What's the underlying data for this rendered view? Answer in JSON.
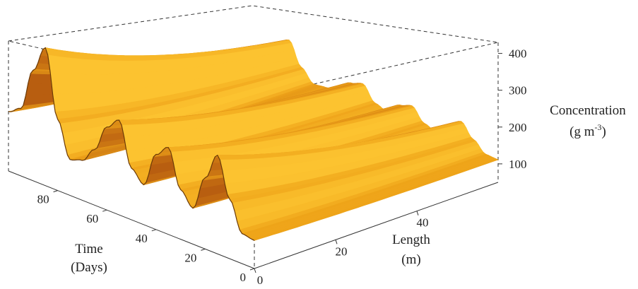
{
  "chart_data": {
    "type": "surface3d",
    "title": "",
    "x_axis": {
      "label_line1": "Length",
      "label_line2": "(m)",
      "ticks": [
        "0",
        "20",
        "40"
      ],
      "range": [
        0,
        60
      ]
    },
    "y_axis": {
      "label_line1": "Time",
      "label_line2": "(Days)",
      "ticks": [
        "0",
        "20",
        "40",
        "60",
        "80"
      ],
      "range": [
        0,
        100
      ]
    },
    "z_axis": {
      "label_line1": "Concentration",
      "label_prefix": "(g m",
      "label_sup": "-3",
      "label_suffix": ")",
      "ticks": [
        "100",
        "200",
        "300",
        "400"
      ],
      "range": [
        50,
        430
      ]
    },
    "ridges_time_days": [
      12,
      33,
      54,
      85
    ],
    "time_profile_at_length_0": {
      "time_days": [
        0,
        5,
        10,
        15,
        20,
        25,
        30,
        35,
        40,
        45,
        50,
        55,
        60,
        65,
        70,
        75,
        80,
        85,
        90,
        95,
        100
      ],
      "concentration": [
        120,
        125,
        200,
        300,
        230,
        140,
        175,
        270,
        240,
        150,
        180,
        290,
        260,
        190,
        150,
        140,
        230,
        400,
        330,
        220,
        200
      ]
    },
    "grid": false,
    "colors": {
      "surface_light": "#fcc330",
      "surface_mid": "#eea319",
      "surface_dark": "#b85e10",
      "box": "#333333"
    }
  }
}
